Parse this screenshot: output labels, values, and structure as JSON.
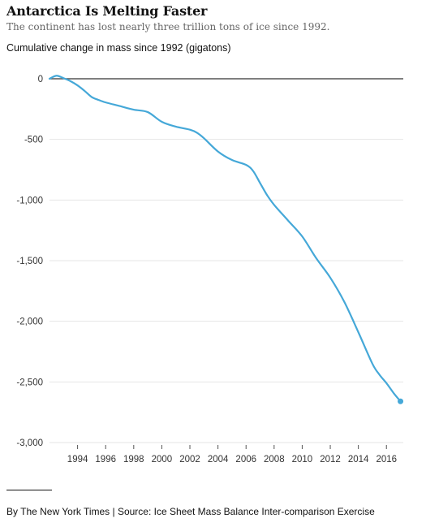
{
  "header": {
    "title": "Antarctica Is Melting Faster",
    "subtitle": "The continent has lost nearly three trillion tons of ice since 1992."
  },
  "footer": {
    "credit": "By The New York Times | Source: Ice Sheet Mass Balance Inter-comparison Exercise"
  },
  "colors": {
    "line": "#45a8d8",
    "grid": "#e6e6e6",
    "zero_line": "#555555",
    "tick_label": "#333333"
  },
  "chart_data": {
    "type": "line",
    "title": "Antarctica Is Melting Faster",
    "subtitle": "The continent has lost nearly three trillion tons of ice since 1992.",
    "ylabel": "Cumulative change in mass since 1992 (gigatons)",
    "xlabel": "",
    "xlim": [
      1992,
      2017.2
    ],
    "ylim": [
      -3000,
      0
    ],
    "grid": true,
    "y_ticks": [
      0,
      -500,
      -1000,
      -1500,
      -2000,
      -2500,
      -3000
    ],
    "y_tick_labels": [
      "0",
      "-500",
      "-1,000",
      "-1,500",
      "-2,000",
      "-2,500",
      "-3,000"
    ],
    "x_ticks": [
      1994,
      1996,
      1998,
      2000,
      2002,
      2004,
      2006,
      2008,
      2010,
      2012,
      2014,
      2016
    ],
    "x_tick_labels": [
      "1994",
      "1996",
      "1998",
      "2000",
      "2002",
      "2004",
      "2006",
      "2008",
      "2010",
      "2012",
      "2014",
      "2016"
    ],
    "x": [
      1992.0,
      1992.5,
      1993.0,
      1993.5,
      1994.0,
      1994.5,
      1995.0,
      1995.5,
      1996.0,
      1997.0,
      1998.0,
      1999.0,
      2000.0,
      2001.0,
      2002.0,
      2002.5,
      2003.0,
      2004.0,
      2005.0,
      2006.0,
      2006.5,
      2007.0,
      2007.5,
      2008.0,
      2009.0,
      2010.0,
      2011.0,
      2012.0,
      2013.0,
      2014.0,
      2015.0,
      2015.5,
      2016.0,
      2016.5,
      2017.0
    ],
    "values": [
      0,
      25,
      5,
      -20,
      -55,
      -100,
      -150,
      -175,
      -195,
      -225,
      -255,
      -275,
      -355,
      -395,
      -420,
      -445,
      -490,
      -600,
      -670,
      -710,
      -760,
      -860,
      -960,
      -1040,
      -1170,
      -1300,
      -1480,
      -1640,
      -1840,
      -2090,
      -2350,
      -2440,
      -2510,
      -2590,
      -2660
    ]
  }
}
